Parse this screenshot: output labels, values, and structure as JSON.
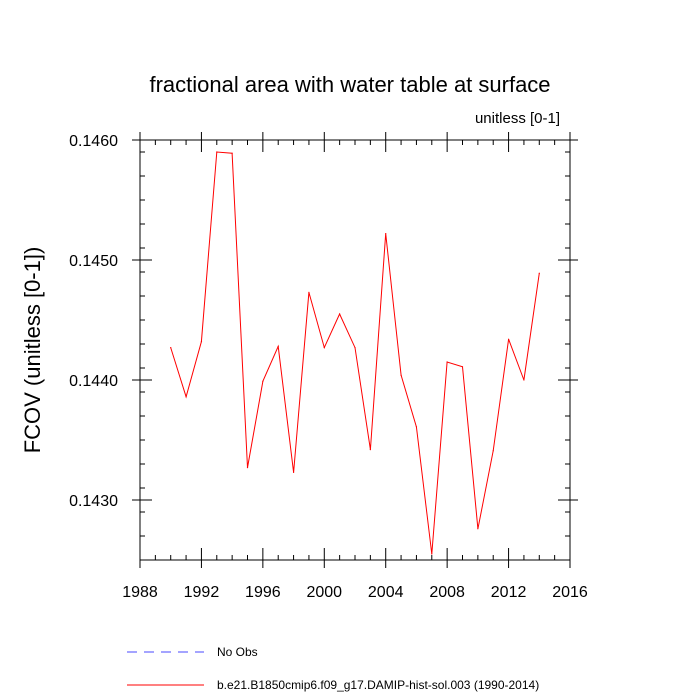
{
  "chart_data": {
    "type": "line",
    "title": "fractional area with water table at surface",
    "units_label": "unitless [0-1]",
    "ylabel": "FCOV  (unitless [0-1])",
    "xlabel": "",
    "xlim": [
      1988,
      2016
    ],
    "ylim": [
      0.1425,
      0.146
    ],
    "x_ticks": [
      1988,
      1992,
      1996,
      2000,
      2004,
      2008,
      2012,
      2016
    ],
    "x_tick_labels": [
      "1988",
      "1992",
      "1996",
      "2000",
      "2004",
      "2008",
      "2012",
      "2016"
    ],
    "y_ticks": [
      0.143,
      0.144,
      0.145,
      0.146
    ],
    "y_tick_labels": [
      "0.1430",
      "0.1440",
      "0.1450",
      "0.1460"
    ],
    "grid": false,
    "legend_position": "bottom",
    "series": [
      {
        "name": "b.e21.B1850cmip6.f09_g17.DAMIP-hist-sol.003 (1990-2014)",
        "color": "#ff0000",
        "style": "solid",
        "x": [
          1990,
          1991,
          1992,
          1993,
          1994,
          1995,
          1996,
          1997,
          1998,
          1999,
          2000,
          2001,
          2002,
          2003,
          2004,
          2005,
          2006,
          2007,
          2008,
          2009,
          2010,
          2011,
          2012,
          2013,
          2014
        ],
        "values": [
          0.14427,
          0.14386,
          0.14432,
          0.1459,
          0.14589,
          0.14327,
          0.14399,
          0.14428,
          0.14323,
          0.14473,
          0.14427,
          0.14455,
          0.14427,
          0.14342,
          0.14522,
          0.14404,
          0.14361,
          0.14255,
          0.14415,
          0.14411,
          0.14276,
          0.14341,
          0.14434,
          0.144,
          0.14489
        ]
      }
    ],
    "legend": [
      {
        "label": "No Obs",
        "color": "#4a4aff",
        "style": "dashed"
      },
      {
        "label": "b.e21.B1850cmip6.f09_g17.DAMIP-hist-sol.003 (1990-2014)",
        "color": "#ff0000",
        "style": "solid"
      }
    ]
  }
}
